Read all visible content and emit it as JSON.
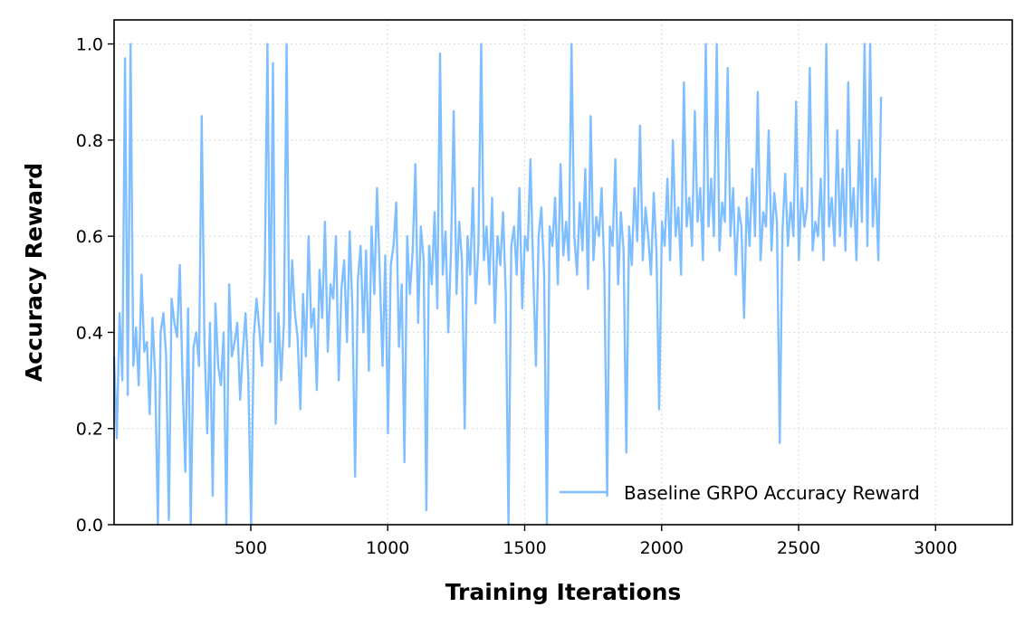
{
  "chart_data": {
    "type": "line",
    "xlabel": "Training Iterations",
    "ylabel": "Accuracy Reward",
    "xlim": [
      1,
      3280
    ],
    "ylim": [
      0.0,
      1.05
    ],
    "x_ticks": [
      500,
      1000,
      1500,
      2000,
      2500,
      3000
    ],
    "y_ticks": [
      0.0,
      0.2,
      0.4,
      0.6,
      0.8,
      1.0
    ],
    "y_tick_labels": [
      "0.0",
      "0.2",
      "0.4",
      "0.6",
      "0.8",
      "1.0"
    ],
    "grid": true,
    "legend_position": "lower-right",
    "series": [
      {
        "name": "Baseline GRPO Accuracy Reward",
        "color": "#80bfff",
        "x_start": 1,
        "x_step": 10,
        "values": [
          0.35,
          0.18,
          0.44,
          0.3,
          0.97,
          0.27,
          1.0,
          0.33,
          0.41,
          0.29,
          0.52,
          0.36,
          0.38,
          0.23,
          0.43,
          0.31,
          0.0,
          0.4,
          0.44,
          0.35,
          0.01,
          0.47,
          0.42,
          0.39,
          0.54,
          0.3,
          0.11,
          0.45,
          0.0,
          0.37,
          0.4,
          0.33,
          0.85,
          0.38,
          0.19,
          0.42,
          0.06,
          0.46,
          0.33,
          0.29,
          0.4,
          0.0,
          0.5,
          0.35,
          0.38,
          0.42,
          0.26,
          0.36,
          0.44,
          0.31,
          0.0,
          0.39,
          0.47,
          0.41,
          0.33,
          0.52,
          1.0,
          0.38,
          0.96,
          0.21,
          0.44,
          0.3,
          0.42,
          1.0,
          0.37,
          0.55,
          0.44,
          0.39,
          0.24,
          0.48,
          0.35,
          0.6,
          0.41,
          0.45,
          0.28,
          0.53,
          0.43,
          0.63,
          0.36,
          0.5,
          0.47,
          0.6,
          0.3,
          0.49,
          0.55,
          0.38,
          0.61,
          0.45,
          0.1,
          0.51,
          0.58,
          0.4,
          0.57,
          0.32,
          0.62,
          0.48,
          0.7,
          0.52,
          0.33,
          0.56,
          0.19,
          0.54,
          0.58,
          0.67,
          0.37,
          0.5,
          0.13,
          0.6,
          0.48,
          0.57,
          0.75,
          0.42,
          0.62,
          0.55,
          0.03,
          0.58,
          0.5,
          0.65,
          0.45,
          0.98,
          0.52,
          0.61,
          0.4,
          0.57,
          0.86,
          0.48,
          0.63,
          0.55,
          0.2,
          0.6,
          0.52,
          0.7,
          0.46,
          0.58,
          1.0,
          0.55,
          0.62,
          0.5,
          0.68,
          0.42,
          0.6,
          0.54,
          0.65,
          0.48,
          0.0,
          0.58,
          0.62,
          0.52,
          0.7,
          0.45,
          0.6,
          0.57,
          0.76,
          0.53,
          0.33,
          0.6,
          0.66,
          0.52,
          0.0,
          0.62,
          0.58,
          0.68,
          0.5,
          0.75,
          0.56,
          0.63,
          0.55,
          1.0,
          0.6,
          0.52,
          0.67,
          0.57,
          0.74,
          0.49,
          0.85,
          0.55,
          0.64,
          0.6,
          0.7,
          0.52,
          0.06,
          0.62,
          0.58,
          0.76,
          0.5,
          0.65,
          0.57,
          0.15,
          0.62,
          0.54,
          0.7,
          0.59,
          0.83,
          0.55,
          0.66,
          0.6,
          0.52,
          0.69,
          0.57,
          0.24,
          0.63,
          0.58,
          0.72,
          0.55,
          0.8,
          0.6,
          0.66,
          0.52,
          0.92,
          0.62,
          0.68,
          0.58,
          0.86,
          0.63,
          0.7,
          0.55,
          1.0,
          0.62,
          0.72,
          0.6,
          1.0,
          0.57,
          0.67,
          0.63,
          0.95,
          0.6,
          0.7,
          0.52,
          0.66,
          0.62,
          0.43,
          0.68,
          0.58,
          0.74,
          0.6,
          0.9,
          0.55,
          0.65,
          0.62,
          0.82,
          0.57,
          0.69,
          0.63,
          0.17,
          0.61,
          0.73,
          0.58,
          0.67,
          0.6,
          0.88,
          0.55,
          0.7,
          0.62,
          0.66,
          0.95,
          0.57,
          0.63,
          0.6,
          0.72,
          0.55,
          1.0,
          0.62,
          0.68,
          0.58,
          0.82,
          0.6,
          0.74,
          0.57,
          0.92,
          0.62,
          0.7,
          0.55,
          0.8,
          0.63,
          1.0,
          0.58,
          1.0,
          0.62,
          0.72,
          0.55,
          0.89
        ]
      }
    ]
  }
}
